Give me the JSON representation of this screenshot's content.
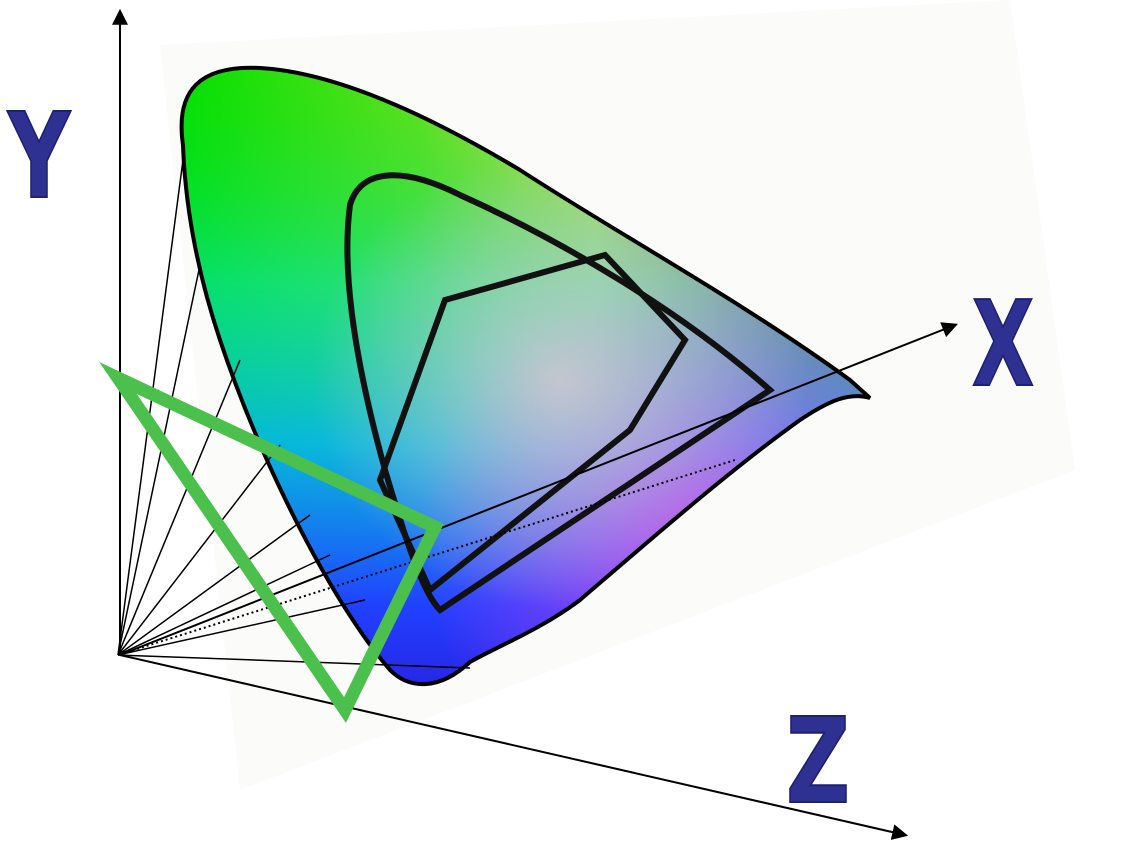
{
  "diagram": {
    "axes": {
      "x_label": "X",
      "y_label": "Y",
      "z_label": "Z"
    },
    "colors": {
      "axis_label": "#2e3192",
      "axis_line": "#000000",
      "projection_triangle": "#4cc04c",
      "gamut_outline": "#000000"
    }
  }
}
